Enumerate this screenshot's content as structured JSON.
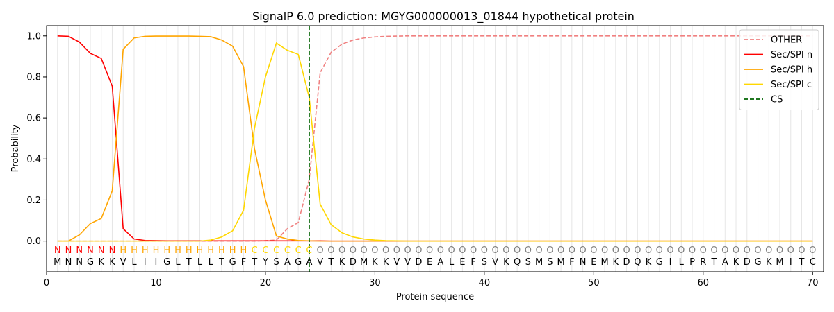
{
  "chart_data": {
    "type": "line",
    "title": "SignalP 6.0 prediction: MGYG000000013_01844 hypothetical protein",
    "xlabel": "Protein sequence",
    "ylabel": "Probability",
    "xlim": [
      0,
      71
    ],
    "ylim": [
      -0.15,
      1.05
    ],
    "xticks": [
      0,
      10,
      20,
      30,
      40,
      50,
      60,
      70
    ],
    "yticks": [
      0.0,
      0.2,
      0.4,
      0.6,
      0.8,
      1.0
    ],
    "ytick_labels": [
      "0.0",
      "0.2",
      "0.4",
      "0.6",
      "0.8",
      "1.0"
    ],
    "vertical_grid": true,
    "legend_position": "top-right",
    "sequence": [
      "M",
      "N",
      "N",
      "G",
      "K",
      "K",
      "V",
      "L",
      "I",
      "I",
      "G",
      "L",
      "T",
      "L",
      "L",
      "T",
      "G",
      "F",
      "T",
      "Y",
      "S",
      "A",
      "G",
      "A",
      "V",
      "T",
      "K",
      "D",
      "M",
      "K",
      "K",
      "V",
      "V",
      "D",
      "E",
      "A",
      "L",
      "E",
      "F",
      "S",
      "V",
      "K",
      "Q",
      "S",
      "M",
      "S",
      "M",
      "F",
      "N",
      "E",
      "M",
      "K",
      "D",
      "Q",
      "K",
      "G",
      "I",
      "L",
      "P",
      "R",
      "T",
      "A",
      "K",
      "D",
      "G",
      "K",
      "M",
      "I",
      "T",
      "C"
    ],
    "labels": [
      "N",
      "N",
      "N",
      "N",
      "N",
      "N",
      "H",
      "H",
      "H",
      "H",
      "H",
      "H",
      "H",
      "H",
      "H",
      "H",
      "H",
      "H",
      "C",
      "C",
      "C",
      "C",
      "C",
      "C",
      "O",
      "O",
      "O",
      "O",
      "O",
      "O",
      "O",
      "O",
      "O",
      "O",
      "O",
      "O",
      "O",
      "O",
      "O",
      "O",
      "O",
      "O",
      "O",
      "O",
      "O",
      "O",
      "O",
      "O",
      "O",
      "O",
      "O",
      "O",
      "O",
      "O",
      "O",
      "O",
      "O",
      "O",
      "O",
      "O",
      "O",
      "O",
      "O",
      "O",
      "O",
      "O",
      "O",
      "O",
      "O",
      "O"
    ],
    "label_colors": {
      "N": "#ff0000",
      "H": "#ffa500",
      "C": "#ffd700",
      "O": "#808080"
    },
    "series": [
      {
        "name": "OTHER",
        "color": "#f08080",
        "dashed": true,
        "values": [
          0,
          0,
          0,
          0,
          0,
          0,
          0,
          0,
          0,
          0,
          0,
          0,
          0,
          0,
          0,
          0,
          0,
          0,
          0,
          0.002,
          0.005,
          0.06,
          0.09,
          0.3,
          0.82,
          0.92,
          0.96,
          0.98,
          0.99,
          0.995,
          0.998,
          0.999,
          1,
          1,
          1,
          1,
          1,
          1,
          1,
          1,
          1,
          1,
          1,
          1,
          1,
          1,
          1,
          1,
          1,
          1,
          1,
          1,
          1,
          1,
          1,
          1,
          1,
          1,
          1,
          1,
          1,
          1,
          1,
          1,
          1,
          1,
          1,
          1,
          1,
          1
        ]
      },
      {
        "name": "Sec/SPI n",
        "color": "#ff0000",
        "dashed": false,
        "values": [
          1.0,
          0.998,
          0.97,
          0.915,
          0.89,
          0.755,
          0.06,
          0.01,
          0.003,
          0.002,
          0.001,
          0.001,
          0.001,
          0.001,
          0.001,
          0.001,
          0.001,
          0.001,
          0.001,
          0.001,
          0.001,
          0.001,
          0.001,
          0.001,
          0.001,
          0,
          0,
          0,
          0,
          0,
          0,
          0,
          0,
          0,
          0,
          0,
          0,
          0,
          0,
          0,
          0,
          0,
          0,
          0,
          0,
          0,
          0,
          0,
          0,
          0,
          0,
          0,
          0,
          0,
          0,
          0,
          0,
          0,
          0,
          0,
          0,
          0,
          0,
          0,
          0,
          0,
          0,
          0,
          0,
          0
        ]
      },
      {
        "name": "Sec/SPI h",
        "color": "#ffa500",
        "dashed": false,
        "values": [
          0,
          0,
          0.03,
          0.085,
          0.11,
          0.245,
          0.935,
          0.99,
          0.998,
          0.999,
          0.999,
          0.999,
          0.999,
          0.998,
          0.996,
          0.98,
          0.95,
          0.85,
          0.45,
          0.2,
          0.025,
          0.01,
          0.003,
          0.001,
          0,
          0,
          0,
          0,
          0,
          0,
          0,
          0,
          0,
          0,
          0,
          0,
          0,
          0,
          0,
          0,
          0,
          0,
          0,
          0,
          0,
          0,
          0,
          0,
          0,
          0,
          0,
          0,
          0,
          0,
          0,
          0,
          0,
          0,
          0,
          0,
          0,
          0,
          0,
          0,
          0,
          0,
          0,
          0,
          0,
          0
        ]
      },
      {
        "name": "Sec/SPI c",
        "color": "#ffd700",
        "dashed": false,
        "values": [
          0,
          0,
          0,
          0,
          0,
          0,
          0,
          0,
          0,
          0,
          0,
          0,
          0,
          0,
          0.005,
          0.02,
          0.05,
          0.15,
          0.55,
          0.8,
          0.965,
          0.93,
          0.91,
          0.7,
          0.18,
          0.08,
          0.04,
          0.02,
          0.01,
          0.005,
          0.002,
          0.001,
          0,
          0,
          0,
          0,
          0,
          0,
          0,
          0,
          0,
          0,
          0,
          0,
          0,
          0,
          0,
          0,
          0,
          0,
          0,
          0,
          0,
          0,
          0,
          0,
          0,
          0,
          0,
          0,
          0,
          0,
          0,
          0,
          0,
          0,
          0,
          0,
          0,
          0
        ]
      }
    ],
    "cleavage_site": {
      "name": "CS",
      "x": 24,
      "color": "#006400"
    }
  }
}
